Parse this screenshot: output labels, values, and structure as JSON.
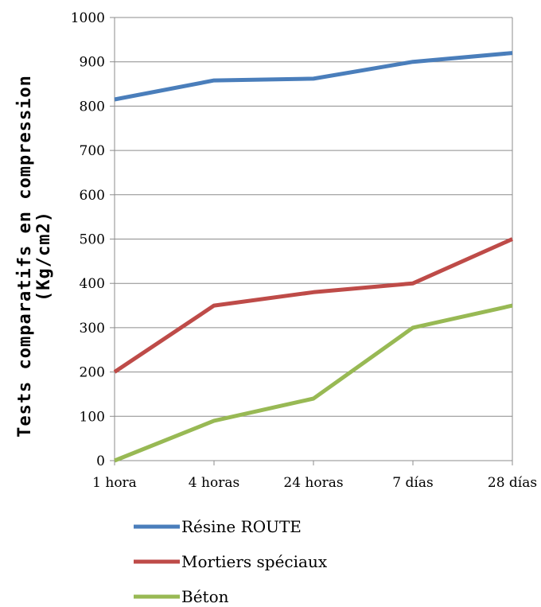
{
  "chart_data": {
    "type": "line",
    "ylabel_line1": "Tests comparatifs en compression",
    "ylabel_line2": "(Kg/cm2)",
    "xlabel": "",
    "categories": [
      "1 hora",
      "4 horas",
      "24 horas",
      "7 días",
      "28 días"
    ],
    "ylim": [
      0,
      1000
    ],
    "yticks": [
      0,
      100,
      200,
      300,
      400,
      500,
      600,
      700,
      800,
      900,
      1000
    ],
    "grid": true,
    "legend_position": "bottom",
    "series": [
      {
        "name": "Résine ROUTE",
        "color": "#4a7ebb",
        "values": [
          815,
          858,
          862,
          900,
          920
        ]
      },
      {
        "name": "Mortiers spéciaux",
        "color": "#be4b48",
        "values": [
          200,
          350,
          380,
          400,
          500
        ]
      },
      {
        "name": "Béton",
        "color": "#98b954",
        "values": [
          0,
          90,
          140,
          300,
          350
        ]
      }
    ]
  }
}
